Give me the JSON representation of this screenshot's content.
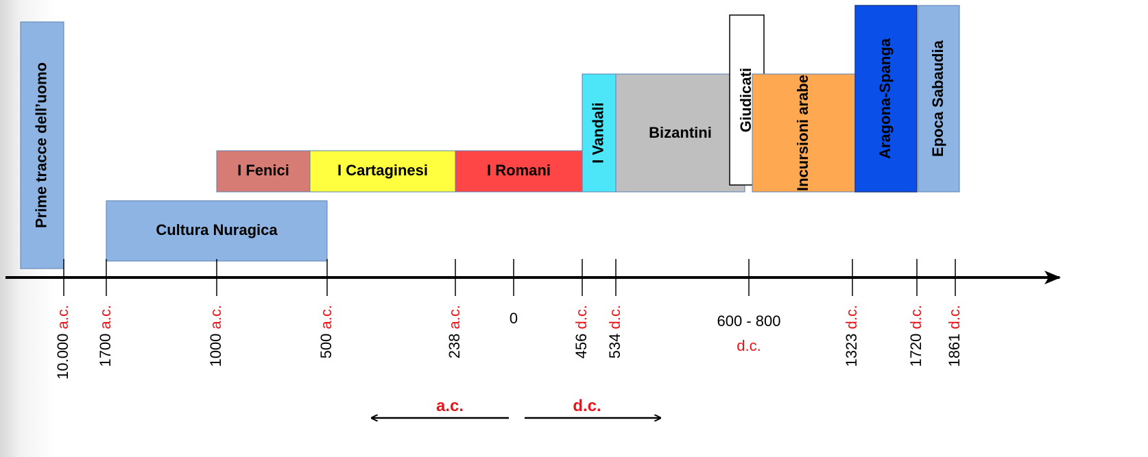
{
  "periods": [
    {
      "label": "Prime tracce dell’uomo"
    },
    {
      "label": "Cultura Nuragica"
    },
    {
      "label": "I Fenici"
    },
    {
      "label": "I Cartaginesi"
    },
    {
      "label": "I Romani"
    },
    {
      "label": "I Vandali"
    },
    {
      "label": "Bizantini"
    },
    {
      "label": "Incursioni arabe"
    },
    {
      "label": "Giudicati"
    },
    {
      "label": "Aragona-Spanga"
    },
    {
      "label": "Epoca Sabaudia"
    }
  ],
  "ticks": [
    {
      "year": "10.000",
      "era": "a.c."
    },
    {
      "year": "1700",
      "era": "a.c."
    },
    {
      "year": "1000",
      "era": "a.c."
    },
    {
      "year": "500",
      "era": "a.c."
    },
    {
      "year": "238",
      "era": "a.c."
    },
    {
      "year": "0"
    },
    {
      "year": "456",
      "era": "d.c."
    },
    {
      "year": "534",
      "era": "d.c."
    },
    {
      "year": "600 - 800",
      "era": "d.c."
    },
    {
      "year": "1323",
      "era": "d.c."
    },
    {
      "year": "1720",
      "era": "d.c."
    },
    {
      "year": "1861",
      "era": "d.c."
    }
  ],
  "era_arrows": [
    "a.c.",
    "d.c."
  ]
}
